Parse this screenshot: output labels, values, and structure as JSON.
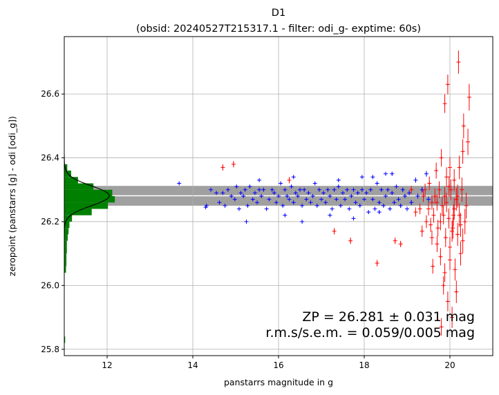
{
  "chart_data": {
    "type": "scatter",
    "title": "D1",
    "subtitle": "(obsid: 20240527T215317.1 - filter: odi_g- exptime: 60s)",
    "xlabel": "panstarrs magnitude in g",
    "ylabel": "zeropoint (panstarrs [g] - odi [odi_g])",
    "xlim": [
      11.0,
      21.0
    ],
    "ylim": [
      25.78,
      26.78
    ],
    "xticks": [
      12,
      14,
      16,
      18,
      20
    ],
    "yticks": [
      25.8,
      26.0,
      26.2,
      26.4,
      26.6
    ],
    "xtick_labels": [
      "12",
      "14",
      "16",
      "18",
      "20"
    ],
    "ytick_labels": [
      "25.8",
      "26.0",
      "26.2",
      "26.4",
      "26.6"
    ],
    "grid": true,
    "zeropoint": 26.281,
    "zeropoint_err": 0.031,
    "rms": 0.059,
    "sem": 0.005,
    "annotation_line1": "ZP = 26.281 ± 0.031 mag",
    "annotation_line2": "r.m.s/s.e.m. = 0.059/0.005 mag",
    "band": {
      "low": 26.25,
      "high": 26.312,
      "color": "#a0a0a0"
    },
    "zp_line_color": "#ffffff",
    "colors": {
      "used": "#0000ff",
      "rejected": "#ff0000",
      "histogram": "#008000",
      "gaussian": "#000000"
    },
    "series": [
      {
        "marker": "+",
        "color": "#0000ff",
        "points": [
          [
            13.68,
            26.32
          ],
          [
            14.3,
            26.245
          ],
          [
            14.32,
            26.25
          ],
          [
            14.42,
            26.3
          ],
          [
            14.55,
            26.29
          ],
          [
            14.62,
            26.26
          ],
          [
            14.7,
            26.29
          ],
          [
            14.75,
            26.25
          ],
          [
            14.82,
            26.3
          ],
          [
            14.9,
            26.28
          ],
          [
            14.98,
            26.27
          ],
          [
            15.02,
            26.31
          ],
          [
            15.08,
            26.24
          ],
          [
            15.12,
            26.29
          ],
          [
            15.18,
            26.28
          ],
          [
            15.22,
            26.3
          ],
          [
            15.28,
            26.25
          ],
          [
            15.33,
            26.31
          ],
          [
            15.4,
            26.27
          ],
          [
            15.45,
            26.29
          ],
          [
            15.5,
            26.26
          ],
          [
            15.55,
            26.3
          ],
          [
            15.6,
            26.28
          ],
          [
            15.65,
            26.3
          ],
          [
            15.72,
            26.24
          ],
          [
            15.78,
            26.27
          ],
          [
            15.85,
            26.3
          ],
          [
            15.9,
            26.29
          ],
          [
            15.95,
            26.26
          ],
          [
            16.0,
            26.28
          ],
          [
            16.05,
            26.32
          ],
          [
            16.1,
            26.25
          ],
          [
            16.15,
            26.3
          ],
          [
            16.2,
            26.28
          ],
          [
            16.25,
            26.27
          ],
          [
            16.3,
            26.31
          ],
          [
            16.35,
            26.26
          ],
          [
            16.4,
            26.29
          ],
          [
            16.45,
            26.28
          ],
          [
            16.5,
            26.3
          ],
          [
            16.55,
            26.25
          ],
          [
            16.6,
            26.3
          ],
          [
            16.65,
            26.27
          ],
          [
            16.7,
            26.29
          ],
          [
            16.75,
            26.26
          ],
          [
            16.8,
            26.28
          ],
          [
            16.85,
            26.32
          ],
          [
            16.9,
            26.25
          ],
          [
            16.95,
            26.3
          ],
          [
            17.0,
            26.27
          ],
          [
            17.05,
            26.29
          ],
          [
            17.1,
            26.26
          ],
          [
            17.15,
            26.3
          ],
          [
            17.2,
            26.28
          ],
          [
            17.25,
            26.24
          ],
          [
            17.3,
            26.3
          ],
          [
            17.35,
            26.27
          ],
          [
            17.4,
            26.31
          ],
          [
            17.45,
            26.25
          ],
          [
            17.5,
            26.29
          ],
          [
            17.55,
            26.27
          ],
          [
            17.6,
            26.3
          ],
          [
            17.65,
            26.24
          ],
          [
            17.7,
            26.28
          ],
          [
            17.75,
            26.3
          ],
          [
            17.8,
            26.26
          ],
          [
            17.85,
            26.29
          ],
          [
            17.9,
            26.25
          ],
          [
            17.95,
            26.3
          ],
          [
            18.0,
            26.27
          ],
          [
            18.05,
            26.29
          ],
          [
            18.1,
            26.23
          ],
          [
            18.15,
            26.3
          ],
          [
            18.2,
            26.27
          ],
          [
            18.25,
            26.24
          ],
          [
            18.3,
            26.32
          ],
          [
            18.35,
            26.26
          ],
          [
            18.4,
            26.3
          ],
          [
            18.45,
            26.25
          ],
          [
            18.5,
            26.28
          ],
          [
            18.55,
            26.3
          ],
          [
            18.6,
            26.24
          ],
          [
            18.65,
            26.29
          ],
          [
            18.7,
            26.26
          ],
          [
            18.75,
            26.31
          ],
          [
            18.8,
            26.27
          ],
          [
            18.85,
            26.25
          ],
          [
            18.9,
            26.3
          ],
          [
            18.95,
            26.28
          ],
          [
            19.0,
            26.24
          ],
          [
            15.25,
            26.2
          ],
          [
            16.15,
            26.22
          ],
          [
            16.55,
            26.2
          ],
          [
            17.2,
            26.22
          ],
          [
            17.75,
            26.21
          ],
          [
            18.35,
            26.23
          ],
          [
            15.55,
            26.33
          ],
          [
            16.35,
            26.34
          ],
          [
            17.4,
            26.33
          ],
          [
            17.95,
            26.34
          ],
          [
            18.2,
            26.34
          ],
          [
            18.5,
            26.35
          ],
          [
            18.65,
            26.35
          ],
          [
            19.2,
            26.33
          ],
          [
            19.45,
            26.35
          ],
          [
            19.05,
            26.29
          ],
          [
            19.1,
            26.26
          ],
          [
            19.25,
            26.28
          ],
          [
            19.35,
            26.3
          ],
          [
            19.5,
            26.27
          ]
        ]
      },
      {
        "marker": "+",
        "color": "#ff0000",
        "points": [
          [
            14.7,
            26.37
          ],
          [
            14.95,
            26.38
          ],
          [
            16.25,
            26.33
          ],
          [
            17.3,
            26.17
          ],
          [
            17.68,
            26.14
          ],
          [
            18.3,
            26.07
          ],
          [
            18.72,
            26.14
          ],
          [
            18.85,
            26.13
          ],
          [
            19.1,
            26.3
          ],
          [
            19.2,
            26.23
          ],
          [
            19.3,
            26.24
          ],
          [
            19.38,
            26.28
          ],
          [
            19.45,
            26.2
          ],
          [
            19.52,
            26.32
          ],
          [
            19.58,
            26.26
          ],
          [
            19.62,
            26.22
          ],
          [
            19.68,
            26.36
          ],
          [
            19.72,
            26.18
          ],
          [
            19.75,
            26.3
          ],
          [
            19.78,
            26.09
          ],
          [
            19.82,
            26.25
          ],
          [
            19.85,
            26.0
          ],
          [
            19.88,
            26.28
          ],
          [
            19.9,
            26.15
          ],
          [
            19.92,
            26.34
          ],
          [
            19.95,
            25.95
          ],
          [
            19.97,
            26.21
          ],
          [
            20.0,
            26.12
          ],
          [
            20.02,
            26.3
          ],
          [
            20.05,
            25.9
          ],
          [
            20.07,
            26.18
          ],
          [
            20.1,
            26.24
          ],
          [
            20.12,
            26.05
          ],
          [
            20.15,
            26.27
          ],
          [
            20.18,
            26.16
          ],
          [
            20.2,
            26.7
          ],
          [
            20.22,
            26.22
          ],
          [
            20.25,
            26.1
          ],
          [
            20.28,
            26.3
          ],
          [
            20.3,
            26.14
          ],
          [
            20.32,
            26.5
          ],
          [
            20.35,
            26.2
          ],
          [
            20.38,
            26.25
          ],
          [
            20.42,
            26.45
          ],
          [
            20.45,
            26.59
          ],
          [
            19.8,
            26.4
          ],
          [
            19.95,
            26.63
          ],
          [
            20.05,
            26.17
          ],
          [
            20.15,
            25.98
          ],
          [
            20.22,
            26.37
          ],
          [
            19.6,
            26.06
          ],
          [
            19.7,
            26.13
          ],
          [
            19.88,
            26.04
          ],
          [
            20.1,
            26.33
          ],
          [
            20.3,
            26.42
          ],
          [
            19.55,
            26.19
          ],
          [
            19.65,
            26.28
          ],
          [
            19.85,
            26.22
          ],
          [
            20.0,
            26.08
          ],
          [
            20.25,
            26.19
          ],
          [
            19.42,
            26.3
          ],
          [
            19.58,
            26.15
          ],
          [
            19.78,
            26.2
          ],
          [
            19.92,
            26.26
          ],
          [
            20.08,
            26.22
          ],
          [
            19.35,
            26.17
          ],
          [
            19.5,
            26.24
          ],
          [
            19.7,
            26.26
          ],
          [
            19.98,
            26.31
          ],
          [
            20.18,
            26.28
          ],
          [
            19.8,
            25.87
          ],
          [
            19.88,
            26.57
          ],
          [
            20.0,
            26.37
          ]
        ]
      }
    ],
    "histogram": {
      "bins_low": [
        26.04,
        26.06,
        26.08,
        26.1,
        26.12,
        26.14,
        26.16,
        26.18,
        26.2,
        26.22,
        26.24,
        26.26,
        26.28,
        26.3,
        26.32,
        26.34,
        26.36,
        25.82
      ],
      "bin_width": 0.02,
      "widths_in_x": [
        0.04,
        0.05,
        0.05,
        0.06,
        0.06,
        0.08,
        0.1,
        0.12,
        0.18,
        0.64,
        1.02,
        1.18,
        1.12,
        0.68,
        0.32,
        0.16,
        0.07,
        0.02
      ]
    }
  }
}
